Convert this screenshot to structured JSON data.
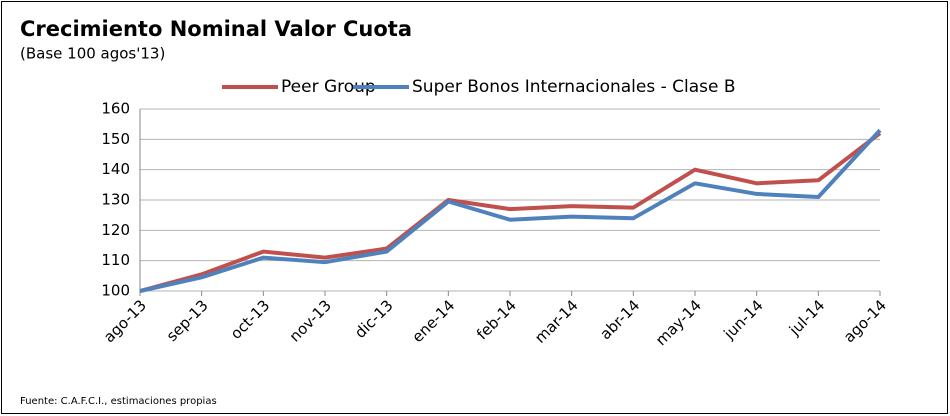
{
  "chart_data": {
    "type": "line",
    "title": "Crecimiento Nominal Valor Cuota",
    "subtitle": "(Base 100 agos'13)",
    "source": "Fuente: C.A.F.C.I., estimaciones propias",
    "categories": [
      "ago-13",
      "sep-13",
      "oct-13",
      "nov-13",
      "dic-13",
      "ene-14",
      "feb-14",
      "mar-14",
      "abr-14",
      "may-14",
      "jun-14",
      "jul-14",
      "ago-14"
    ],
    "series": [
      {
        "name": "Peer Group",
        "color": "#c0504d",
        "values": [
          100,
          105.5,
          113,
          111,
          114,
          130,
          127,
          128,
          127.5,
          140,
          135.5,
          136.5,
          152
        ]
      },
      {
        "name": "Super Bonos Internacionales - Clase B",
        "color": "#4f81bd",
        "values": [
          100,
          104.5,
          111,
          109.5,
          113,
          129.5,
          123.5,
          124.5,
          124,
          135.5,
          132,
          131,
          153
        ]
      }
    ],
    "ylim": [
      100,
      160
    ],
    "yticks": [
      100,
      110,
      120,
      130,
      140,
      150,
      160
    ],
    "grid": true,
    "legend": "top"
  }
}
